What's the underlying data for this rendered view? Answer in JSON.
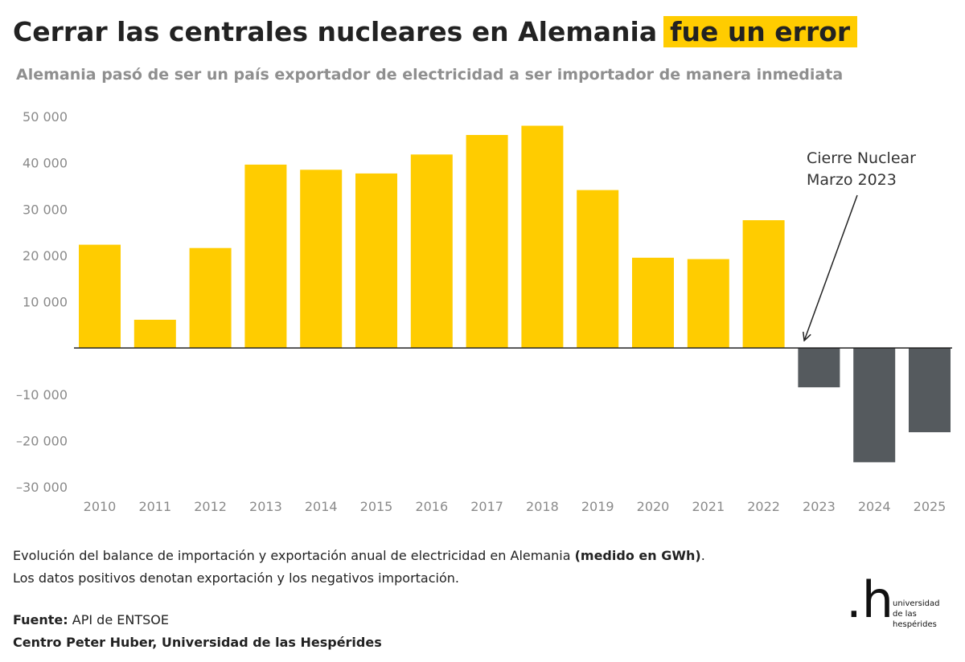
{
  "header": {
    "title_main": "Cerrar las centrales nucleares en Alemania",
    "title_highlight": "fue un error",
    "subtitle": "Alemania pasó de ser un país exportador de electricidad a ser importador de manera inmediata"
  },
  "colors": {
    "export": "#ffcc00",
    "import": "#555a5e",
    "highlight": "#ffcc00"
  },
  "chart_data": {
    "type": "bar",
    "categories": [
      "2010",
      "2011",
      "2012",
      "2013",
      "2014",
      "2015",
      "2016",
      "2017",
      "2018",
      "2019",
      "2020",
      "2021",
      "2022",
      "2023",
      "2024",
      "2025"
    ],
    "values": [
      22300,
      6100,
      21600,
      39600,
      38500,
      37700,
      41800,
      46000,
      48000,
      34100,
      19500,
      19200,
      27600,
      -8500,
      -24700,
      -18200
    ],
    "ylim": [
      -30000,
      50000
    ],
    "yticks": [
      50000,
      40000,
      30000,
      20000,
      10000,
      -10000,
      -20000,
      -30000
    ],
    "ytick_labels": [
      "50 000",
      "40 000",
      "30 000",
      "20 000",
      "10 000",
      "–10 000",
      "–20 000",
      "–30 000"
    ],
    "grid": false,
    "annotation": {
      "line1": "Cierre Nuclear",
      "line2": "Marzo 2023",
      "target_category": "2023"
    }
  },
  "notes": {
    "line1_text": "Evolución del balance de importación y exportación anual de electricidad en Alemania ",
    "line1_bold": "(medido en GWh)",
    "line1_end": ".",
    "line2": "Los datos positivos denotan exportación y los negativos importación."
  },
  "source": {
    "label": "Fuente:",
    "value": " API de ENTSOE",
    "credit": "Centro Peter Huber, Universidad de las Hespérides"
  },
  "logo": {
    "mark": ".h",
    "line1": "universidad",
    "line2": "de las",
    "line3": "hespérides"
  }
}
